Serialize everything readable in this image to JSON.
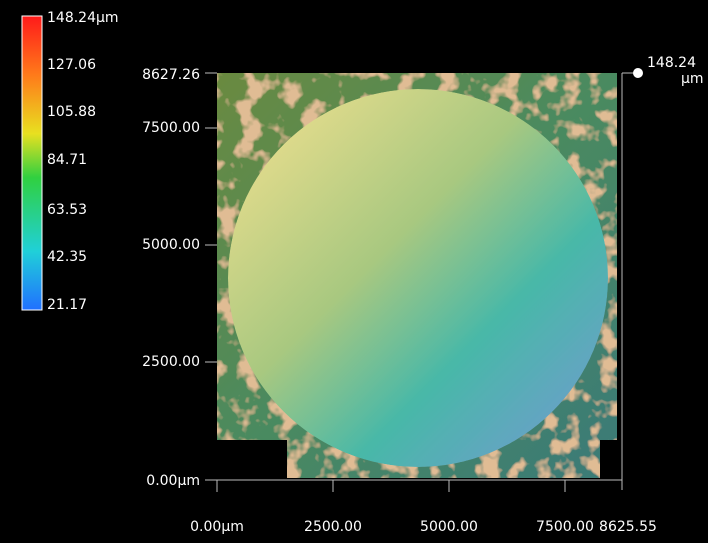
{
  "color_scale": {
    "labels": [
      "148.24µm",
      "127.06",
      "105.88",
      "84.71",
      "63.53",
      "42.35",
      "21.17"
    ]
  },
  "y_axis": {
    "labels": [
      "8627.26",
      "7500.00",
      "5000.00",
      "2500.00",
      "0.00µm"
    ]
  },
  "x_axis": {
    "labels": [
      "0.00µm",
      "2500.00",
      "5000.00",
      "7500.00",
      "8625.55"
    ]
  },
  "marker": {
    "value": "148.24",
    "unit": "µm"
  }
}
